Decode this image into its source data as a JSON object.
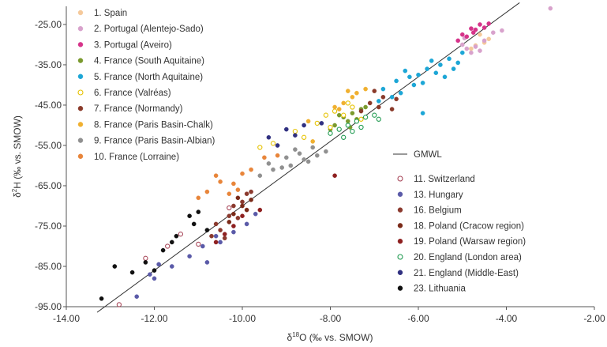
{
  "chart_data": {
    "type": "scatter",
    "title": "",
    "xlabel": "δ18O (‰ vs. SMOW)",
    "xlabel_main": "δ",
    "xlabel_sup": "18",
    "xlabel_rest": "O (‰ vs. SMOW)",
    "ylabel": "δ2H (‰ vs. SMOW)",
    "ylabel_main": "δ",
    "ylabel_sup": "2",
    "ylabel_rest": "H (‰ vs. SMOW)",
    "xlim": [
      -14.0,
      -2.0
    ],
    "ylim": [
      -95.0,
      -20.5
    ],
    "x_ticks": [
      -14.0,
      -12.0,
      -10.0,
      -8.0,
      -6.0,
      -4.0,
      -2.0
    ],
    "x_tick_labels": [
      "-14.00",
      "-12.00",
      "-10.00",
      "-8.00",
      "-6.00",
      "-4.00",
      "-2.00"
    ],
    "y_ticks": [
      -25.0,
      -35.0,
      -45.0,
      -55.0,
      -65.0,
      -75.0,
      -85.0,
      -95.0
    ],
    "y_tick_labels": [
      "-25.00",
      "-35.00",
      "-45.00",
      "-55.00",
      "-65.00",
      "-75.00",
      "-85.00",
      "-95.00"
    ],
    "grid": false,
    "legend_placement": "top-left and middle-right",
    "gmwl": {
      "name": "GMWL",
      "slope": 8,
      "intercept": 10,
      "x_range": [
        -13.3,
        -3.7
      ],
      "color": "#333333"
    },
    "series": [
      {
        "name": "1. Spain",
        "color": "#f5c99b",
        "hollow": false,
        "legend": "left",
        "points": [
          [
            -4.6,
            -27.5
          ],
          [
            -4.5,
            -29.5
          ],
          [
            -4.8,
            -31
          ],
          [
            -4.4,
            -28.6
          ],
          [
            -4.7,
            -30.2
          ]
        ]
      },
      {
        "name": "2. Portugal (Alentejo-Sado)",
        "color": "#d8a2cc",
        "hollow": false,
        "legend": "left",
        "points": [
          [
            -5.0,
            -30
          ],
          [
            -4.9,
            -31
          ],
          [
            -4.7,
            -30.5
          ],
          [
            -4.5,
            -29
          ],
          [
            -4.8,
            -32
          ],
          [
            -4.3,
            -27
          ],
          [
            -4.1,
            -26.5
          ],
          [
            -4.95,
            -28.4
          ],
          [
            -4.6,
            -31.5
          ],
          [
            -3.0,
            -21
          ]
        ]
      },
      {
        "name": "3. Portugal (Aveiro)",
        "color": "#d6338a",
        "hollow": false,
        "legend": "left",
        "points": [
          [
            -5.0,
            -27.5
          ],
          [
            -4.8,
            -26
          ],
          [
            -4.6,
            -25
          ],
          [
            -4.9,
            -28
          ],
          [
            -4.7,
            -26.3
          ],
          [
            -4.5,
            -25.8
          ],
          [
            -5.1,
            -29
          ],
          [
            -4.4,
            -24.8
          ],
          [
            -4.75,
            -27
          ]
        ]
      },
      {
        "name": "4. France (South Aquitaine)",
        "color": "#7a9a2e",
        "hollow": false,
        "legend": "left",
        "points": [
          [
            -7.9,
            -50
          ],
          [
            -7.7,
            -48
          ],
          [
            -7.5,
            -47
          ],
          [
            -7.3,
            -46
          ],
          [
            -7.6,
            -49
          ],
          [
            -7.8,
            -47.5
          ],
          [
            -7.4,
            -48.5
          ],
          [
            -8.0,
            -51
          ],
          [
            -7.2,
            -45.5
          ],
          [
            -7.55,
            -50.5
          ]
        ]
      },
      {
        "name": "5. France (North Aquitaine)",
        "color": "#1ca6d6",
        "hollow": false,
        "legend": "left",
        "points": [
          [
            -6.8,
            -41
          ],
          [
            -6.5,
            -39
          ],
          [
            -6.2,
            -38
          ],
          [
            -6.0,
            -37.5
          ],
          [
            -5.8,
            -36
          ],
          [
            -5.5,
            -35
          ],
          [
            -5.3,
            -33.5
          ],
          [
            -5.0,
            -32
          ],
          [
            -5.6,
            -37
          ],
          [
            -6.1,
            -40
          ],
          [
            -6.4,
            -42
          ],
          [
            -6.6,
            -43
          ],
          [
            -5.9,
            -39.5
          ],
          [
            -5.7,
            -34
          ],
          [
            -5.2,
            -36
          ],
          [
            -6.9,
            -44
          ],
          [
            -6.3,
            -36.5
          ],
          [
            -5.4,
            -38
          ],
          [
            -5.9,
            -47
          ],
          [
            -5.1,
            -34.5
          ]
        ]
      },
      {
        "name": "6. France (Valréas)",
        "color": "#e6c200",
        "hollow": true,
        "legend": "left",
        "points": [
          [
            -9.6,
            -55.5
          ],
          [
            -9.3,
            -54.5
          ],
          [
            -8.6,
            -53
          ],
          [
            -8.0,
            -50.5
          ],
          [
            -7.7,
            -47.5
          ],
          [
            -7.5,
            -45.5
          ],
          [
            -7.9,
            -46.5
          ],
          [
            -8.3,
            -49.5
          ],
          [
            -8.8,
            -51.5
          ],
          [
            -7.3,
            -48.5
          ],
          [
            -7.6,
            -44.5
          ],
          [
            -8.1,
            -47.5
          ]
        ]
      },
      {
        "name": "7. France (Normandy)",
        "color": "#8a3a2a",
        "hollow": false,
        "legend": "left",
        "points": [
          [
            -7.1,
            -44.5
          ],
          [
            -6.8,
            -43
          ],
          [
            -6.5,
            -43.5
          ],
          [
            -7.3,
            -46.5
          ],
          [
            -6.6,
            -46
          ],
          [
            -7.0,
            -41.5
          ],
          [
            -6.9,
            -45.5
          ]
        ]
      },
      {
        "name": "8. France (Paris Basin-Chalk)",
        "color": "#f0b030",
        "hollow": false,
        "legend": "left",
        "points": [
          [
            -7.6,
            -41.5
          ],
          [
            -7.5,
            -43
          ],
          [
            -7.7,
            -44.5
          ],
          [
            -7.4,
            -42
          ],
          [
            -7.8,
            -46
          ],
          [
            -7.9,
            -45.5
          ],
          [
            -8.5,
            -49
          ],
          [
            -8.4,
            -54
          ],
          [
            -7.2,
            -41
          ]
        ]
      },
      {
        "name": "9. France (Paris Basin-Albian)",
        "color": "#909090",
        "hollow": false,
        "legend": "left",
        "points": [
          [
            -8.3,
            -57.5
          ],
          [
            -8.1,
            -56.5
          ],
          [
            -8.6,
            -58.5
          ],
          [
            -8.9,
            -60
          ],
          [
            -9.0,
            -58
          ],
          [
            -9.3,
            -61
          ],
          [
            -9.6,
            -62.5
          ],
          [
            -8.7,
            -57
          ],
          [
            -8.4,
            -55.5
          ],
          [
            -8.5,
            -59
          ],
          [
            -8.8,
            -56
          ],
          [
            -9.1,
            -60.5
          ],
          [
            -9.4,
            -59.5
          ]
        ]
      },
      {
        "name": "10. France (Lorraine)",
        "color": "#e8853a",
        "hollow": false,
        "legend": "left",
        "points": [
          [
            -10.5,
            -64
          ],
          [
            -10.2,
            -64.5
          ],
          [
            -10.0,
            -62
          ],
          [
            -10.8,
            -66.5
          ],
          [
            -11.0,
            -68
          ],
          [
            -9.8,
            -61
          ],
          [
            -9.5,
            -58
          ],
          [
            -10.3,
            -67
          ],
          [
            -10.6,
            -62.5
          ],
          [
            -9.2,
            -57.5
          ],
          [
            -10.1,
            -66
          ]
        ]
      },
      {
        "name": "11. Switzerland",
        "color": "#a8485a",
        "hollow": true,
        "legend": "right",
        "points": [
          [
            -12.8,
            -94.5
          ],
          [
            -11.7,
            -80
          ],
          [
            -12.2,
            -83
          ],
          [
            -11.0,
            -79.5
          ],
          [
            -10.3,
            -70.5
          ],
          [
            -11.4,
            -77
          ]
        ]
      },
      {
        "name": "13. Hungary",
        "color": "#5a5aa8",
        "hollow": false,
        "legend": "right",
        "points": [
          [
            -12.0,
            -88
          ],
          [
            -12.1,
            -87
          ],
          [
            -12.4,
            -92.5
          ],
          [
            -11.6,
            -85
          ],
          [
            -10.8,
            -84
          ],
          [
            -10.9,
            -80
          ],
          [
            -10.5,
            -79
          ],
          [
            -11.2,
            -82.5
          ],
          [
            -11.9,
            -84.5
          ],
          [
            -10.2,
            -76.5
          ],
          [
            -9.9,
            -74.5
          ],
          [
            -10.6,
            -77.5
          ],
          [
            -9.7,
            -72
          ]
        ]
      },
      {
        "name": "16. Belgium",
        "color": "#8b3a2e",
        "hollow": false,
        "legend": "right",
        "points": [
          [
            -10.6,
            -74.5
          ],
          [
            -10.5,
            -76
          ],
          [
            -10.3,
            -72.5
          ],
          [
            -10.2,
            -70
          ],
          [
            -10.0,
            -69
          ],
          [
            -9.9,
            -67
          ],
          [
            -10.4,
            -78
          ],
          [
            -10.1,
            -73
          ],
          [
            -9.8,
            -66.5
          ],
          [
            -10.7,
            -77.5
          ]
        ]
      },
      {
        "name": "18. Poland (Cracow region)",
        "color": "#7a2a18",
        "hollow": false,
        "legend": "right",
        "points": [
          [
            -10.0,
            -70
          ],
          [
            -10.1,
            -68
          ],
          [
            -9.9,
            -71
          ],
          [
            -10.2,
            -72
          ],
          [
            -10.3,
            -74
          ],
          [
            -9.8,
            -68.5
          ]
        ]
      },
      {
        "name": "19. Poland (Warsaw region)",
        "color": "#8e2020",
        "hollow": false,
        "legend": "right",
        "points": [
          [
            -10.4,
            -77
          ],
          [
            -10.2,
            -75
          ],
          [
            -10.6,
            -79
          ],
          [
            -9.6,
            -71
          ],
          [
            -7.9,
            -62.5
          ],
          [
            -10.0,
            -72.5
          ]
        ]
      },
      {
        "name": "20. England (London area)",
        "color": "#1f9a50",
        "hollow": true,
        "legend": "right",
        "points": [
          [
            -8.0,
            -52
          ],
          [
            -7.8,
            -51
          ],
          [
            -7.6,
            -50
          ],
          [
            -7.4,
            -49
          ],
          [
            -7.2,
            -48
          ],
          [
            -7.0,
            -47.5
          ],
          [
            -7.5,
            -51.5
          ],
          [
            -7.3,
            -50.5
          ],
          [
            -7.7,
            -53
          ],
          [
            -6.9,
            -48.5
          ]
        ]
      },
      {
        "name": "21. England (Middle-East)",
        "color": "#303080",
        "hollow": false,
        "legend": "right",
        "points": [
          [
            -9.0,
            -51
          ],
          [
            -8.6,
            -50
          ],
          [
            -9.4,
            -53
          ],
          [
            -8.2,
            -49.5
          ],
          [
            -8.8,
            -52.5
          ],
          [
            -9.2,
            -55
          ]
        ]
      },
      {
        "name": "23. Lithuania",
        "color": "#101010",
        "hollow": false,
        "legend": "right",
        "points": [
          [
            -13.2,
            -93
          ],
          [
            -12.9,
            -85
          ],
          [
            -12.5,
            -86.5
          ],
          [
            -12.2,
            -84
          ],
          [
            -11.8,
            -81
          ],
          [
            -11.6,
            -79
          ],
          [
            -11.5,
            -77.5
          ],
          [
            -11.2,
            -72.5
          ],
          [
            -11.0,
            -71.5
          ],
          [
            -10.8,
            -76
          ],
          [
            -11.1,
            -74.5
          ],
          [
            -12.0,
            -86
          ]
        ]
      }
    ]
  }
}
